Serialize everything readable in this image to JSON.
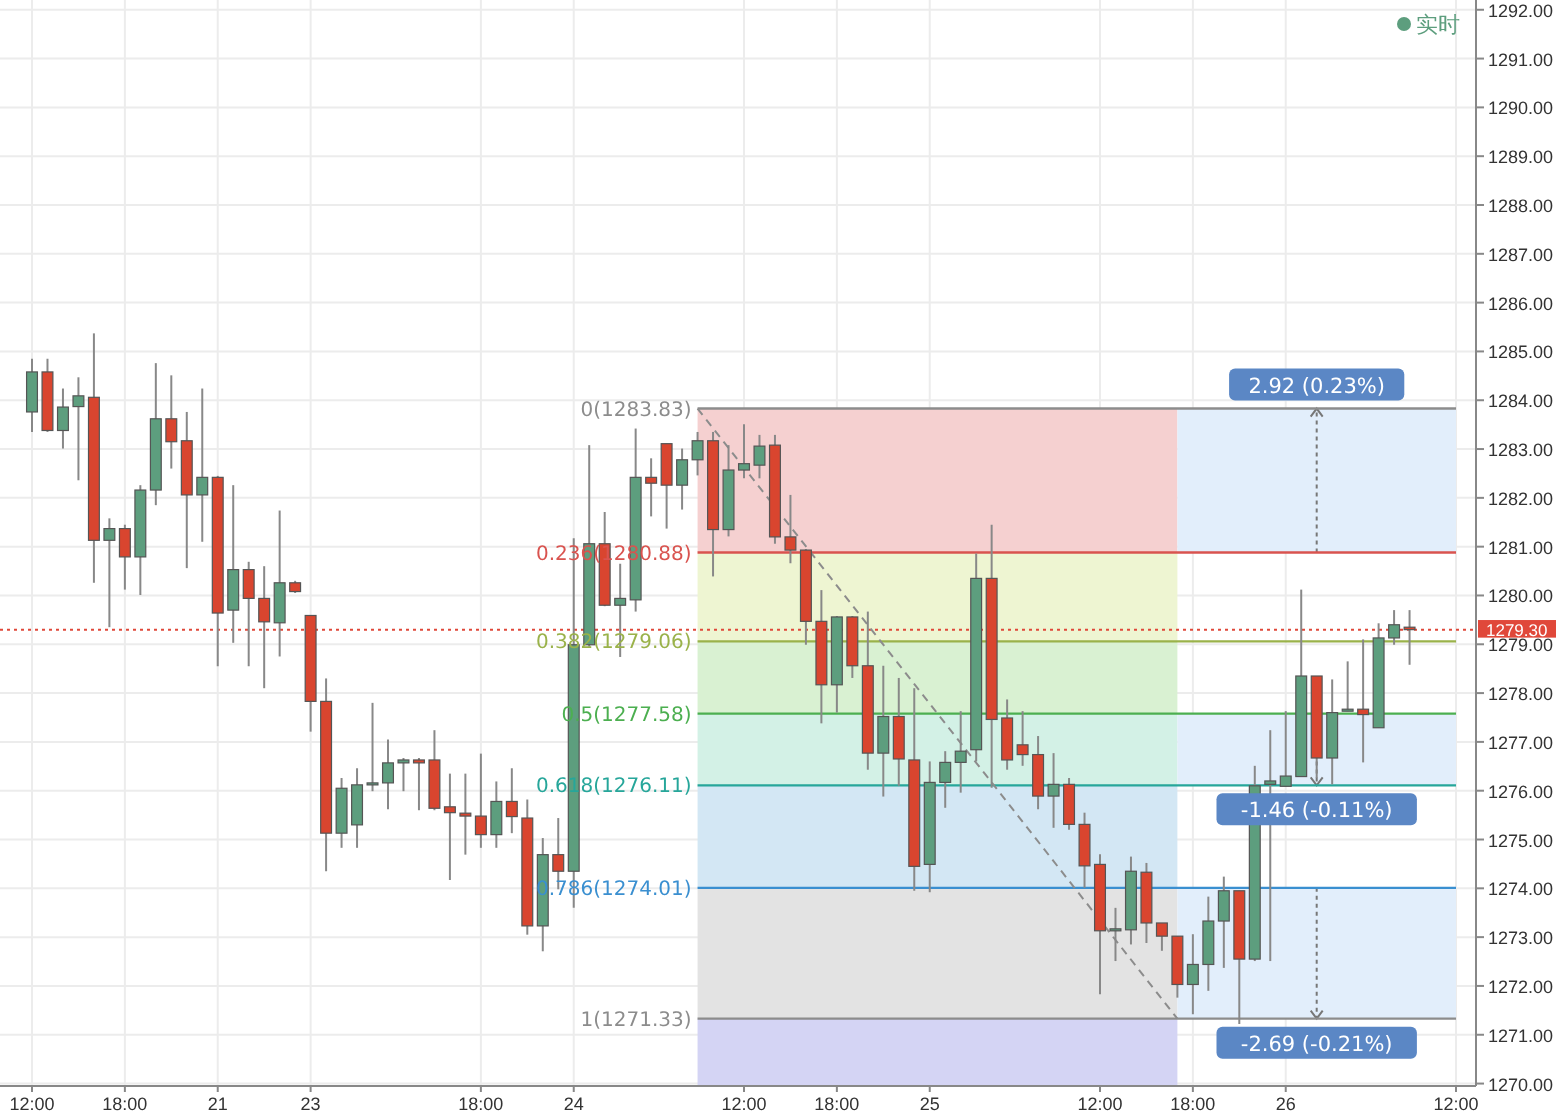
{
  "chart_data": {
    "type": "candlestick",
    "categories": [
      "12:00",
      null,
      null,
      null,
      null,
      null,
      "18:00",
      null,
      null,
      null,
      null,
      null,
      "21",
      null,
      null,
      null,
      null,
      null,
      "23",
      null,
      null,
      null,
      null,
      null,
      null,
      null,
      null,
      null,
      null,
      "18:00",
      null,
      null,
      null,
      null,
      null,
      "24",
      null,
      null,
      null,
      null,
      null,
      null,
      null,
      null,
      null,
      null,
      "12:00",
      null,
      null,
      null,
      null,
      null,
      "18:00",
      null,
      null,
      null,
      null,
      null,
      "25",
      null,
      null,
      null,
      null,
      null,
      null,
      null,
      null,
      null,
      null,
      "12:00",
      null,
      null,
      null,
      null,
      null,
      "18:00",
      null,
      null,
      null,
      null,
      null,
      "26",
      null,
      null,
      null,
      null,
      null,
      null,
      null,
      null,
      null,
      null,
      "12:00"
    ],
    "series": [
      {
        "name": "实时",
        "color": "#5d9e7e",
        "ohlc": [
          [
            1283.76,
            1284.85,
            1283.35,
            1284.58
          ],
          [
            1284.58,
            1284.85,
            1283.35,
            1283.38
          ],
          [
            1283.38,
            1284.24,
            1283.01,
            1283.86
          ],
          [
            1283.87,
            1284.47,
            1282.36,
            1284.09
          ],
          [
            1284.06,
            1285.37,
            1280.26,
            1281.13
          ],
          [
            1281.13,
            1281.58,
            1279.35,
            1281.37
          ],
          [
            1281.37,
            1281.45,
            1280.12,
            1280.79
          ],
          [
            1280.79,
            1282.26,
            1280.01,
            1282.16
          ],
          [
            1282.16,
            1284.76,
            1281.85,
            1283.62
          ],
          [
            1283.62,
            1284.51,
            1282.6,
            1283.15
          ],
          [
            1283.17,
            1283.76,
            1280.56,
            1282.06
          ],
          [
            1282.06,
            1284.24,
            1281.1,
            1282.42
          ],
          [
            1282.42,
            1282.45,
            1278.55,
            1279.64
          ],
          [
            1279.7,
            1282.26,
            1279.03,
            1280.53
          ],
          [
            1280.53,
            1280.69,
            1278.55,
            1279.94
          ],
          [
            1279.94,
            1280.6,
            1278.1,
            1279.46
          ],
          [
            1279.44,
            1281.74,
            1278.75,
            1280.26
          ],
          [
            1280.26,
            1280.3,
            1280.05,
            1280.08
          ],
          [
            1279.59,
            1279.6,
            1277.21,
            1277.83
          ],
          [
            1277.83,
            1278.3,
            1274.35,
            1275.13
          ],
          [
            1275.13,
            1276.26,
            1274.83,
            1276.05
          ],
          [
            1275.3,
            1276.46,
            1274.83,
            1276.12
          ],
          [
            1276.12,
            1277.8,
            1275.99,
            1276.16
          ],
          [
            1276.16,
            1277.05,
            1275.62,
            1276.57
          ],
          [
            1276.57,
            1276.67,
            1275.99,
            1276.63
          ],
          [
            1276.63,
            1276.67,
            1275.6,
            1276.57
          ],
          [
            1276.63,
            1277.24,
            1275.6,
            1275.64
          ],
          [
            1275.67,
            1276.35,
            1274.17,
            1275.55
          ],
          [
            1275.54,
            1276.35,
            1274.69,
            1275.48
          ],
          [
            1275.48,
            1276.76,
            1274.83,
            1275.1
          ],
          [
            1275.1,
            1276.19,
            1274.83,
            1275.78
          ],
          [
            1275.78,
            1276.46,
            1275.13,
            1275.47
          ],
          [
            1275.44,
            1275.82,
            1273.05,
            1273.23
          ],
          [
            1273.23,
            1275.03,
            1272.71,
            1274.69
          ],
          [
            1274.69,
            1275.44,
            1273.98,
            1274.35
          ],
          [
            1274.35,
            1281.17,
            1273.6,
            1278.99
          ],
          [
            1278.99,
            1283.08,
            1278.95,
            1281.06
          ],
          [
            1281.06,
            1281.71,
            1279.78,
            1279.8
          ],
          [
            1279.8,
            1280.65,
            1278.74,
            1279.94
          ],
          [
            1279.91,
            1283.42,
            1279.67,
            1282.42
          ],
          [
            1282.42,
            1282.81,
            1281.62,
            1282.3
          ],
          [
            1283.11,
            1283.11,
            1281.37,
            1282.26
          ],
          [
            1282.26,
            1283.01,
            1281.76,
            1282.78
          ],
          [
            1282.78,
            1283.35,
            1282.46,
            1283.17
          ],
          [
            1283.17,
            1283.35,
            1280.39,
            1281.35
          ],
          [
            1281.35,
            1283.08,
            1281.21,
            1282.57
          ],
          [
            1282.57,
            1283.51,
            1282.4,
            1282.7
          ],
          [
            1282.67,
            1283.29,
            1282.4,
            1283.06
          ],
          [
            1283.08,
            1283.29,
            1281.06,
            1281.2
          ],
          [
            1281.2,
            1282.06,
            1280.66,
            1280.93
          ],
          [
            1280.93,
            1280.95,
            1278.99,
            1279.47
          ],
          [
            1279.47,
            1280.11,
            1277.38,
            1278.17
          ],
          [
            1278.17,
            1279.58,
            1277.6,
            1279.56
          ],
          [
            1279.56,
            1279.58,
            1278.31,
            1278.56
          ],
          [
            1278.56,
            1279.67,
            1276.43,
            1276.77
          ],
          [
            1276.77,
            1278.56,
            1275.88,
            1277.52
          ],
          [
            1277.52,
            1278.31,
            1276.1,
            1276.65
          ],
          [
            1276.63,
            1278.1,
            1273.95,
            1274.45
          ],
          [
            1274.49,
            1276.6,
            1273.92,
            1276.17
          ],
          [
            1276.17,
            1276.81,
            1275.65,
            1276.58
          ],
          [
            1276.58,
            1277.63,
            1275.96,
            1276.81
          ],
          [
            1276.84,
            1280.86,
            1276.6,
            1280.35
          ],
          [
            1280.35,
            1281.45,
            1276.06,
            1277.46
          ],
          [
            1277.49,
            1277.87,
            1276.43,
            1276.63
          ],
          [
            1276.94,
            1277.63,
            1276.51,
            1276.74
          ],
          [
            1276.74,
            1277.12,
            1275.62,
            1275.89
          ],
          [
            1275.89,
            1276.77,
            1275.24,
            1276.13
          ],
          [
            1276.13,
            1276.26,
            1275.2,
            1275.31
          ],
          [
            1275.31,
            1275.55,
            1274.01,
            1274.46
          ],
          [
            1274.49,
            1274.7,
            1271.83,
            1273.13
          ],
          [
            1273.15,
            1273.6,
            1272.51,
            1273.17
          ],
          [
            1273.15,
            1274.65,
            1272.85,
            1274.35
          ],
          [
            1274.33,
            1274.52,
            1272.88,
            1273.29
          ],
          [
            1273.29,
            1273.29,
            1272.72,
            1273.02
          ],
          [
            1273.02,
            1273.02,
            1271.76,
            1272.03
          ],
          [
            1272.03,
            1273.06,
            1271.42,
            1272.44
          ],
          [
            1272.44,
            1273.83,
            1271.9,
            1273.33
          ],
          [
            1273.33,
            1274.24,
            1272.37,
            1273.95
          ],
          [
            1273.95,
            1273.95,
            1271.22,
            1272.55
          ],
          [
            1272.55,
            1276.51,
            1272.51,
            1276.1
          ],
          [
            1276.13,
            1277.24,
            1272.51,
            1276.2
          ],
          [
            1276.09,
            1277.63,
            1276.09,
            1276.3
          ],
          [
            1276.29,
            1280.12,
            1276.29,
            1278.35
          ],
          [
            1278.35,
            1278.35,
            1276.26,
            1276.67
          ],
          [
            1276.67,
            1278.28,
            1276.13,
            1277.6
          ],
          [
            1277.63,
            1278.65,
            1277.63,
            1277.67
          ],
          [
            1277.67,
            1279.1,
            1276.58,
            1277.56
          ],
          [
            1277.29,
            1279.43,
            1277.29,
            1279.13
          ],
          [
            1279.13,
            1279.7,
            1278.99,
            1279.4
          ],
          [
            1279.35,
            1279.7,
            1278.58,
            1279.3
          ],
          null,
          null,
          null
        ],
        "colors": [
          "#5d9e7e",
          "#d9452f",
          "#5d9e7e",
          "#5d9e7e",
          "#d9452f",
          "#5d9e7e",
          "#d9452f",
          "#5d9e7e",
          "#5d9e7e",
          "#d9452f",
          "#d9452f",
          "#5d9e7e",
          "#d9452f",
          "#5d9e7e",
          "#d9452f",
          "#d9452f",
          "#5d9e7e",
          "#d9452f",
          "#d9452f",
          "#d9452f",
          "#5d9e7e",
          "#5d9e7e",
          "#5d9e7e",
          "#5d9e7e",
          "#5d9e7e",
          "#d9452f",
          "#d9452f",
          "#d9452f",
          "#d9452f",
          "#d9452f",
          "#5d9e7e",
          "#d9452f",
          "#d9452f",
          "#5d9e7e",
          "#d9452f",
          "#5d9e7e",
          "#5d9e7e",
          "#d9452f",
          "#5d9e7e",
          "#5d9e7e",
          "#d9452f",
          "#d9452f",
          "#5d9e7e",
          "#5d9e7e",
          "#d9452f",
          "#5d9e7e",
          "#5d9e7e",
          "#5d9e7e",
          "#d9452f",
          "#d9452f",
          "#d9452f",
          "#d9452f",
          "#5d9e7e",
          "#d9452f",
          "#d9452f",
          "#5d9e7e",
          "#d9452f",
          "#d9452f",
          "#5d9e7e",
          "#5d9e7e",
          "#5d9e7e",
          "#5d9e7e",
          "#d9452f",
          "#d9452f",
          "#d9452f",
          "#d9452f",
          "#5d9e7e",
          "#d9452f",
          "#d9452f",
          "#d9452f",
          "#5d9e7e",
          "#5d9e7e",
          "#d9452f",
          "#d9452f",
          "#d9452f",
          "#5d9e7e",
          "#5d9e7e",
          "#5d9e7e",
          "#d9452f",
          "#5d9e7e",
          "#5d9e7e",
          "#5d9e7e",
          "#5d9e7e",
          "#d9452f",
          "#5d9e7e",
          "#5d9e7e",
          "#d9452f",
          "#5d9e7e",
          "#5d9e7e",
          "#d9452f",
          null,
          null,
          null
        ]
      },
      {
        "type": "line",
        "color": "#8c8c8c",
        "line_style": "dashed",
        "values": [
          null,
          null,
          null,
          null,
          null,
          null,
          null,
          null,
          null,
          null,
          null,
          null,
          null,
          null,
          null,
          null,
          null,
          null,
          null,
          null,
          null,
          null,
          null,
          null,
          null,
          null,
          null,
          null,
          null,
          null,
          null,
          null,
          null,
          null,
          null,
          null,
          null,
          null,
          null,
          null,
          null,
          null,
          null,
          1283.83,
          null,
          null,
          null,
          null,
          null,
          null,
          null,
          null,
          null,
          null,
          null,
          null,
          null,
          null,
          null,
          null,
          null,
          null,
          null,
          null,
          null,
          null,
          null,
          null,
          null,
          null,
          null,
          null,
          null,
          null,
          1271.33,
          null,
          null,
          null,
          null,
          null,
          null,
          null,
          null,
          null,
          null,
          null,
          null,
          null,
          null,
          null,
          null,
          null,
          null
        ]
      }
    ],
    "ylim": [
      1269.95,
      1292.2
    ],
    "yticks": [
      {
        "value": 1270,
        "label": "1270.00"
      },
      {
        "value": 1271,
        "label": "1271.00"
      },
      {
        "value": 1272,
        "label": "1272.00"
      },
      {
        "value": 1273,
        "label": "1273.00"
      },
      {
        "value": 1274,
        "label": "1274.00"
      },
      {
        "value": 1275,
        "label": "1275.00"
      },
      {
        "value": 1276,
        "label": "1276.00"
      },
      {
        "value": 1277,
        "label": "1277.00"
      },
      {
        "value": 1278,
        "label": "1278.00"
      },
      {
        "value": 1279,
        "label": "1279.00"
      },
      {
        "value": 1280,
        "label": "1280.00"
      },
      {
        "value": 1281,
        "label": "1281.00"
      },
      {
        "value": 1282,
        "label": "1282.00"
      },
      {
        "value": 1283,
        "label": "1283.00"
      },
      {
        "value": 1284,
        "label": "1284.00"
      },
      {
        "value": 1285,
        "label": "1285.00"
      },
      {
        "value": 1286,
        "label": "1286.00"
      },
      {
        "value": 1287,
        "label": "1287.00"
      },
      {
        "value": 1288,
        "label": "1288.00"
      },
      {
        "value": 1289,
        "label": "1289.00"
      },
      {
        "value": 1290,
        "label": "1290.00"
      },
      {
        "value": 1291,
        "label": "1291.00"
      },
      {
        "value": 1292,
        "label": "1292.00"
      }
    ],
    "bands": [
      {
        "axis": "y",
        "from": 1283.83,
        "to": 1280.88,
        "color": "#f5d0d0"
      },
      {
        "axis": "y",
        "from": 1280.88,
        "to": 1279.06,
        "color": "#eef5d2"
      },
      {
        "axis": "y",
        "from": 1279.06,
        "to": 1277.58,
        "color": "#d9f1d2"
      },
      {
        "axis": "y",
        "from": 1277.58,
        "to": 1276.11,
        "color": "#d3f1e6"
      },
      {
        "axis": "y",
        "from": 1276.11,
        "to": 1274.01,
        "color": "#d3e7f4"
      },
      {
        "axis": "y",
        "from": 1274.01,
        "to": 1271.33,
        "color": "#e3e3e3"
      },
      {
        "axis": "y",
        "from": 1271.33,
        "to": 1269.95,
        "color": "#d4d4f4"
      },
      {
        "axis": "y",
        "from": 1280.88,
        "to": 1283.83,
        "color": "#e2eefb",
        "label": "2.92 (0.23%)"
      },
      {
        "axis": "y",
        "from": 1277.58,
        "to": 1276.11,
        "color": "#e2eefb",
        "label": "-1.46 (-0.11%)"
      },
      {
        "axis": "y",
        "from": 1274.01,
        "to": 1271.33,
        "color": "#e2eefb",
        "label": "-2.69 (-0.21%)"
      }
    ],
    "ref_lines": [
      {
        "axis": "y",
        "value": 1283.83,
        "label": "0(1283.83)",
        "color": "#8c8c8c"
      },
      {
        "axis": "y",
        "value": 1280.88,
        "label": "0.236(1280.88)",
        "color": "#d9534f"
      },
      {
        "axis": "y",
        "value": 1279.06,
        "label": "0.382(1279.06)",
        "color": "#9ab24a"
      },
      {
        "axis": "y",
        "value": 1277.58,
        "label": "0.5(1277.58)",
        "color": "#4caf50"
      },
      {
        "axis": "y",
        "value": 1276.11,
        "label": "0.618(1276.11)",
        "color": "#26a69a"
      },
      {
        "axis": "y",
        "value": 1274.01,
        "label": "0.786(1274.01)",
        "color": "#3a8fd0"
      },
      {
        "axis": "y",
        "value": 1271.33,
        "label": "1(1271.33)",
        "color": "#8c8c8c"
      },
      {
        "axis": "y",
        "value": 1279.3,
        "label": "1279.30",
        "color": "#e0483a",
        "line_style": "dotted"
      }
    ],
    "grid": true,
    "legend": "top right"
  }
}
